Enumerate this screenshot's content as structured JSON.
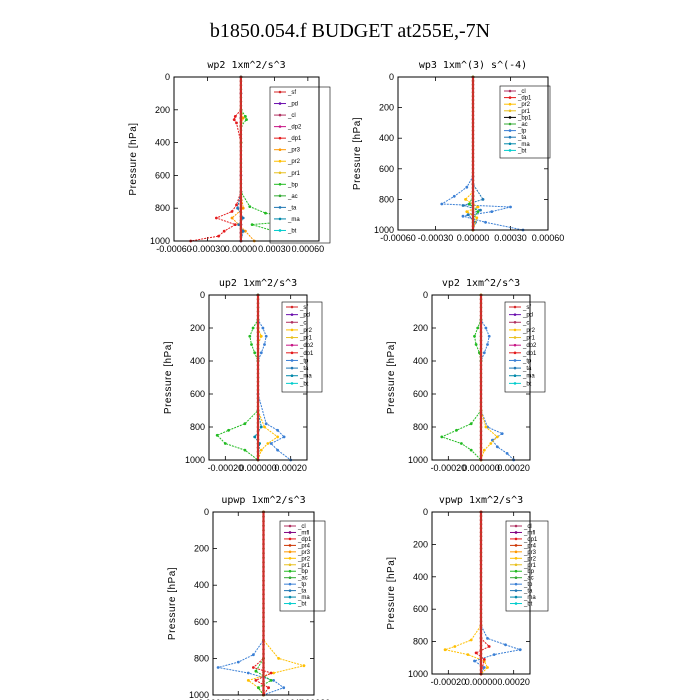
{
  "page": {
    "title": "b1850.054.f  BUDGET at255E,-7N"
  },
  "series_colors": {
    "sf": "#d62728",
    "pd": "#6a0dad",
    "cl": "#b03060",
    "dp2": "#c71585",
    "dp1": "#e41a1c",
    "pr3": "#ff9900",
    "pr2": "#ffbf00",
    "pr1": "#e8c020",
    "bp": "#22bb22",
    "ac": "#33aa33",
    "ta": "#1f77b4",
    "tp": "#3a7fd5",
    "ma": "#0088aa",
    "bt": "#00cccc",
    "mfl": "#800080",
    "pr4": "#cc3300"
  },
  "chart_data": [
    {
      "type": "line",
      "title": "wp2   1xm^2/s^3",
      "ylabel": "Pressure [hPa]",
      "xticks": [
        "-0.00060",
        "-0.00030",
        "0.00000",
        "0.00030",
        "0.00060"
      ],
      "yticks": [
        "0",
        "200",
        "400",
        "600",
        "800",
        "1000"
      ],
      "xlim": [
        -0.0006,
        0.0007
      ],
      "ylim": [
        1000,
        0
      ],
      "legend": [
        "_sf",
        "_pd",
        "_cl",
        "_dp2",
        "_dp1",
        "_pr3",
        "_pr2",
        "_pr1",
        "_bp",
        "_ac",
        "_ta",
        "_ma",
        "_bt"
      ],
      "series": [
        {
          "key": "pd",
          "p": [
            0,
            100,
            200,
            250,
            300,
            400,
            600,
            800,
            860,
            900,
            950,
            1000
          ],
          "x": [
            0.0,
            0.0,
            0.0,
            0.0,
            0.0,
            0.0,
            0.0,
            0.0,
            1e-05,
            0.0,
            0.0,
            0.0
          ]
        },
        {
          "key": "dp1",
          "p": [
            0,
            200,
            240,
            260,
            280,
            400,
            700,
            780,
            820,
            860,
            900,
            940,
            970,
            1000
          ],
          "x": [
            0.0,
            0.0,
            -5e-05,
            -6e-05,
            -4e-05,
            0.0,
            0.0,
            -4e-05,
            -8e-05,
            -0.00022,
            -5e-05,
            -0.00015,
            -0.0002,
            -0.00045
          ]
        },
        {
          "key": "pr3",
          "p": [
            0,
            200,
            250,
            300,
            400,
            700,
            800,
            860,
            900,
            940,
            1000
          ],
          "x": [
            0.0,
            0.0,
            2e-05,
            0.0,
            0.0,
            0.0,
            2e-05,
            -8e-05,
            -2e-05,
            4e-05,
            0.00012
          ]
        },
        {
          "key": "bp",
          "p": [
            0,
            200,
            240,
            260,
            300,
            400,
            700,
            790,
            830,
            870,
            900,
            940,
            1000
          ],
          "x": [
            0.0,
            0.0,
            4e-05,
            5e-05,
            0.0,
            0.0,
            0.0,
            8e-05,
            0.00022,
            0.0006,
            0.0001,
            0.0003,
            0.0003
          ]
        },
        {
          "key": "ta",
          "p": [
            0,
            700,
            800,
            860,
            900,
            940,
            1000
          ],
          "x": [
            0.0,
            0.0,
            -3e-05,
            2e-05,
            -2e-05,
            2e-05,
            0.0
          ]
        },
        {
          "key": "sf",
          "p": [
            0,
            1000
          ],
          "x": [
            0.0,
            0.0
          ]
        }
      ]
    },
    {
      "type": "line",
      "title": "wp3   1xm^(3) s^(-4)",
      "ylabel": "Pressure [hPa]",
      "xticks": [
        "-0.00060",
        "-0.00030",
        "0.00000",
        "0.00030",
        "0.00060"
      ],
      "yticks": [
        "0",
        "200",
        "400",
        "600",
        "800",
        "1000"
      ],
      "xlim": [
        -0.0006,
        0.0006
      ],
      "ylim": [
        1000,
        0
      ],
      "legend": [
        "_cl",
        "_dp1",
        "_pr2",
        "_pr1",
        "_bp1",
        "_ac",
        "_tp",
        "_ta",
        "_ma",
        "_bt"
      ],
      "series": [
        {
          "key": "tp",
          "p": [
            0,
            650,
            720,
            780,
            830,
            850,
            880,
            910,
            950,
            1000
          ],
          "x": [
            0.0,
            0.0,
            -5e-05,
            -0.00015,
            -0.00025,
            0.0003,
            0.00015,
            -8e-05,
            0.0001,
            0.0004
          ]
        },
        {
          "key": "ta",
          "p": [
            0,
            700,
            800,
            840,
            870,
            900,
            950,
            1000
          ],
          "x": [
            0.0,
            0.0,
            8e-05,
            -8e-05,
            6e-05,
            -4e-05,
            2e-05,
            0.0
          ]
        },
        {
          "key": "pr2",
          "p": [
            0,
            750,
            800,
            850,
            880,
            920,
            1000
          ],
          "x": [
            0.0,
            0.0,
            -6e-05,
            4e-05,
            -5e-05,
            3e-05,
            0.0
          ]
        },
        {
          "key": "bp",
          "p": [
            0,
            780,
            830,
            880,
            930,
            1000
          ],
          "x": [
            0.0,
            0.0,
            -3e-05,
            4e-05,
            0.0,
            0.0
          ]
        },
        {
          "key": "sf",
          "p": [
            0,
            1000
          ],
          "x": [
            0.0,
            0.0
          ]
        }
      ]
    },
    {
      "type": "line",
      "title": "up2   1xm^2/s^3",
      "ylabel": "Pressure [hPa]",
      "xticks": [
        "-0.00020",
        "0.000000",
        "0.00020"
      ],
      "yticks": [
        "0",
        "200",
        "400",
        "600",
        "800",
        "1000"
      ],
      "xlim": [
        -0.0003,
        0.0003
      ],
      "ylim": [
        1000,
        0
      ],
      "legend": [
        "_sf",
        "_pd",
        "_cl",
        "_pr2",
        "_pr1",
        "_dp2",
        "_dp1",
        "_tp",
        "_ta",
        "_ma",
        "_bt"
      ],
      "series": [
        {
          "key": "tp",
          "p": [
            0,
            150,
            200,
            250,
            300,
            350,
            400,
            600,
            780,
            820,
            860,
            900,
            940,
            1000
          ],
          "x": [
            0.0,
            0.0,
            3e-05,
            5e-05,
            4e-05,
            2e-05,
            0.0,
            0.0,
            5e-05,
            0.00012,
            0.00016,
            8e-05,
            0.00012,
            0.0002
          ]
        },
        {
          "key": "bp",
          "p": [
            0,
            150,
            200,
            250,
            300,
            350,
            400,
            700,
            780,
            820,
            850,
            900,
            940,
            1000
          ],
          "x": [
            0.0,
            0.0,
            -3e-05,
            -5e-05,
            -4e-05,
            -2e-05,
            0.0,
            0.0,
            -8e-05,
            -0.00018,
            -0.00025,
            -0.0002,
            -8e-05,
            0.0
          ]
        },
        {
          "key": "pr2",
          "p": [
            0,
            200,
            250,
            300,
            700,
            800,
            860,
            900,
            940,
            1000
          ],
          "x": [
            0.0,
            0.0,
            2e-05,
            0.0,
            0.0,
            4e-05,
            0.00012,
            6e-05,
            2e-05,
            0.0
          ]
        },
        {
          "key": "ma",
          "p": [
            0,
            700,
            800,
            860,
            900,
            1000
          ],
          "x": [
            0.0,
            0.0,
            2e-05,
            -2e-05,
            1e-05,
            0.0
          ]
        },
        {
          "key": "sf",
          "p": [
            0,
            1000
          ],
          "x": [
            0.0,
            0.0
          ]
        }
      ]
    },
    {
      "type": "line",
      "title": "vp2   1xm^2/s^3",
      "ylabel": "Pressure [hPa]",
      "xticks": [
        "-0.00020",
        "0.000000",
        "0.00020"
      ],
      "yticks": [
        "0",
        "200",
        "400",
        "600",
        "800",
        "1000"
      ],
      "xlim": [
        -0.0003,
        0.0003
      ],
      "ylim": [
        1000,
        0
      ],
      "legend": [
        "_sf",
        "_pd",
        "_cl",
        "_pr2",
        "_pr1",
        "_dp2",
        "_dp1",
        "_tp",
        "_ta",
        "_ma",
        "_bt"
      ],
      "series": [
        {
          "key": "tp",
          "p": [
            0,
            150,
            200,
            250,
            300,
            350,
            400,
            700,
            800,
            840,
            880,
            920,
            960,
            1000
          ],
          "x": [
            0.0,
            0.0,
            3e-05,
            5e-05,
            4e-05,
            2e-05,
            0.0,
            0.0,
            4e-05,
            0.00013,
            7e-05,
            0.0001,
            0.00016,
            0.0002
          ]
        },
        {
          "key": "bp",
          "p": [
            0,
            150,
            200,
            250,
            300,
            350,
            400,
            700,
            780,
            820,
            860,
            900,
            940,
            1000
          ],
          "x": [
            0.0,
            0.0,
            -2e-05,
            -4e-05,
            -3e-05,
            -1e-05,
            0.0,
            0.0,
            -6e-05,
            -0.00015,
            -0.00024,
            -0.00012,
            -6e-05,
            0.0
          ]
        },
        {
          "key": "pr2",
          "p": [
            0,
            700,
            800,
            860,
            900,
            940,
            1000
          ],
          "x": [
            0.0,
            0.0,
            3e-05,
            0.0001,
            6e-05,
            2e-05,
            0.0
          ]
        },
        {
          "key": "sf",
          "p": [
            0,
            1000
          ],
          "x": [
            0.0,
            0.0
          ]
        }
      ]
    },
    {
      "type": "line",
      "title": "upwp   1xm^2/s^3",
      "ylabel": "Pressure [hPa]",
      "xticks": [
        "-0.00020",
        "-0.00010",
        "0.00000",
        "0.00010",
        "0.00020"
      ],
      "yticks": [
        "0",
        "200",
        "400",
        "600",
        "800",
        "1000"
      ],
      "xlim": [
        -0.0002,
        0.0002
      ],
      "ylim": [
        1000,
        0
      ],
      "legend": [
        "_cl",
        "_mfl",
        "_dp1",
        "_pr4",
        "_pr3",
        "_pr2",
        "_pr1",
        "_bp",
        "_ac",
        "_tp",
        "_ta",
        "_ma",
        "_bt"
      ],
      "series": [
        {
          "key": "tp",
          "p": [
            0,
            700,
            780,
            820,
            850,
            880,
            920,
            960,
            1000
          ],
          "x": [
            0.0,
            0.0,
            -4e-05,
            -0.0001,
            -0.00018,
            -6e-05,
            4e-05,
            8e-05,
            0.0
          ]
        },
        {
          "key": "pr2",
          "p": [
            0,
            700,
            800,
            840,
            880,
            920,
            960,
            1000
          ],
          "x": [
            0.0,
            0.0,
            6e-05,
            0.00016,
            4e-05,
            -6e-05,
            -2e-05,
            0.0
          ]
        },
        {
          "key": "dp1",
          "p": [
            0,
            800,
            850,
            880,
            920,
            960,
            1000
          ],
          "x": [
            0.0,
            0.0,
            -4e-05,
            3e-05,
            -3e-05,
            2e-05,
            0.0
          ]
        },
        {
          "key": "bp",
          "p": [
            0,
            800,
            870,
            920,
            960,
            1000
          ],
          "x": [
            0.0,
            0.0,
            -3e-05,
            3e-05,
            -2e-05,
            0.0
          ]
        },
        {
          "key": "sf",
          "p": [
            0,
            1000
          ],
          "x": [
            0.0,
            0.0
          ]
        }
      ]
    },
    {
      "type": "line",
      "title": "vpwp   1xm^2/s^3",
      "ylabel": "Pressure [hPa]",
      "xticks": [
        "-0.00020",
        "0.00000",
        "0.00020"
      ],
      "yticks": [
        "0",
        "200",
        "400",
        "600",
        "800",
        "1000"
      ],
      "xlim": [
        -0.0003,
        0.0003
      ],
      "ylim": [
        1000,
        0
      ],
      "legend": [
        "_cl",
        "_mfl",
        "_dp1",
        "_pr4",
        "_pr3",
        "_pr2",
        "_pr1",
        "_bp",
        "_ac",
        "_tp",
        "_ta",
        "_ma",
        "_bt"
      ],
      "series": [
        {
          "key": "tp",
          "p": [
            0,
            700,
            780,
            820,
            850,
            880,
            920,
            960,
            1000
          ],
          "x": [
            0.0,
            0.0,
            4e-05,
            0.00015,
            0.00024,
            8e-05,
            -4e-05,
            2e-05,
            0.0
          ]
        },
        {
          "key": "pr2",
          "p": [
            0,
            700,
            790,
            830,
            850,
            880,
            920,
            960,
            1000
          ],
          "x": [
            0.0,
            0.0,
            -6e-05,
            -0.00016,
            -0.00022,
            -8e-05,
            2e-05,
            4e-05,
            0.0
          ]
        },
        {
          "key": "dp1",
          "p": [
            0,
            780,
            830,
            870,
            910,
            1000
          ],
          "x": [
            0.0,
            0.0,
            5e-05,
            -3e-05,
            2e-05,
            0.0
          ]
        },
        {
          "key": "sf",
          "p": [
            0,
            1000
          ],
          "x": [
            0.0,
            0.0
          ]
        }
      ]
    }
  ]
}
